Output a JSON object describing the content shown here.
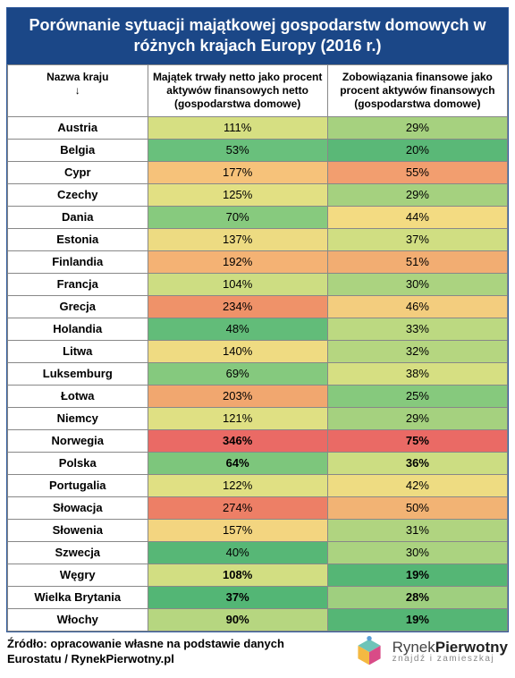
{
  "title": "Porównanie sytuacji majątkowej gospodarstw domowych w różnych krajach Europy (2016 r.)",
  "headers": {
    "country": "Nazwa kraju\n↓",
    "col1": "Majątek trwały netto jako procent aktywów finansowych netto (gospodarstwa domowe)",
    "col2": "Zobowiązania finansowe jako procent aktywów finansowych (gospodarstwa domowe)"
  },
  "col_widths": [
    "28%",
    "36%",
    "36%"
  ],
  "colors": {
    "title_bg": "#1b4787",
    "scale_comment": "heatmap ~ green(low) → yellow → orange → red(high)"
  },
  "rows": [
    {
      "country": "Austria",
      "v1": "111%",
      "c1": "#d6df82",
      "v2": "29%",
      "c2": "#a6d17f",
      "bold": false
    },
    {
      "country": "Belgia",
      "v1": "53%",
      "c1": "#69c07c",
      "v2": "20%",
      "c2": "#5ab877",
      "bold": false
    },
    {
      "country": "Cypr",
      "v1": "177%",
      "c1": "#f6c27a",
      "v2": "55%",
      "c2": "#f29e6f",
      "bold": false
    },
    {
      "country": "Czechy",
      "v1": "125%",
      "c1": "#e2e083",
      "v2": "29%",
      "c2": "#a5d17f",
      "bold": false
    },
    {
      "country": "Dania",
      "v1": "70%",
      "c1": "#87ca7e",
      "v2": "44%",
      "c2": "#f3db82",
      "bold": false
    },
    {
      "country": "Estonia",
      "v1": "137%",
      "c1": "#eddb82",
      "v2": "37%",
      "c2": "#d0de82",
      "bold": false
    },
    {
      "country": "Finlandia",
      "v1": "192%",
      "c1": "#f4b274",
      "v2": "51%",
      "c2": "#f2ad72",
      "bold": false
    },
    {
      "country": "Francja",
      "v1": "104%",
      "c1": "#cddd82",
      "v2": "30%",
      "c2": "#abd380",
      "bold": false
    },
    {
      "country": "Grecja",
      "v1": "234%",
      "c1": "#ef9269",
      "v2": "46%",
      "c2": "#f3cd7e",
      "bold": false
    },
    {
      "country": "Holandia",
      "v1": "48%",
      "c1": "#62bc79",
      "v2": "33%",
      "c2": "#bcd981",
      "bold": false
    },
    {
      "country": "Litwa",
      "v1": "140%",
      "c1": "#efdb82",
      "v2": "32%",
      "c2": "#b5d680",
      "bold": false
    },
    {
      "country": "Luksemburg",
      "v1": "69%",
      "c1": "#85c97e",
      "v2": "38%",
      "c2": "#d6df82",
      "bold": false
    },
    {
      "country": "Łotwa",
      "v1": "203%",
      "c1": "#f1a76f",
      "v2": "25%",
      "c2": "#86c97d",
      "bold": false
    },
    {
      "country": "Niemcy",
      "v1": "121%",
      "c1": "#dfe083",
      "v2": "29%",
      "c2": "#a5d17f",
      "bold": false
    },
    {
      "country": "Norwegia",
      "v1": "346%",
      "c1": "#ea6a65",
      "v2": "75%",
      "c2": "#ea6a65",
      "bold": true
    },
    {
      "country": "Polska",
      "v1": "64%",
      "c1": "#7dc67c",
      "v2": "36%",
      "c2": "#ccdd82",
      "bold": true
    },
    {
      "country": "Portugalia",
      "v1": "122%",
      "c1": "#e0e083",
      "v2": "42%",
      "c2": "#eedc82",
      "bold": false
    },
    {
      "country": "Słowacja",
      "v1": "274%",
      "c1": "#ed7f66",
      "v2": "50%",
      "c2": "#f2b374",
      "bold": false
    },
    {
      "country": "Słowenia",
      "v1": "157%",
      "c1": "#f3d580",
      "v2": "31%",
      "c2": "#b0d480",
      "bold": false
    },
    {
      "country": "Szwecja",
      "v1": "40%",
      "c1": "#57b776",
      "v2": "30%",
      "c2": "#abd380",
      "bold": false
    },
    {
      "country": "Węgry",
      "v1": "108%",
      "c1": "#d2de82",
      "v2": "19%",
      "c2": "#55b675",
      "bold": true
    },
    {
      "country": "Wielka Brytania",
      "v1": "37%",
      "c1": "#53b675",
      "v2": "28%",
      "c2": "#9fcf7f",
      "bold": true
    },
    {
      "country": "Włochy",
      "v1": "90%",
      "c1": "#b6d680",
      "v2": "19%",
      "c2": "#55b675",
      "bold": true
    }
  ],
  "source": "Źródło: opracowanie własne na podstawie danych Eurostatu / RynekPierwotny.pl",
  "logo": {
    "brand_light": "Rynek",
    "brand_bold": "Pierwotny",
    "tagline": "znajdź i zamieszkaj",
    "cube_colors": {
      "top": "#6ec4b8",
      "left": "#f4b942",
      "right": "#d94b87",
      "dot": "#5aa0d8"
    }
  }
}
